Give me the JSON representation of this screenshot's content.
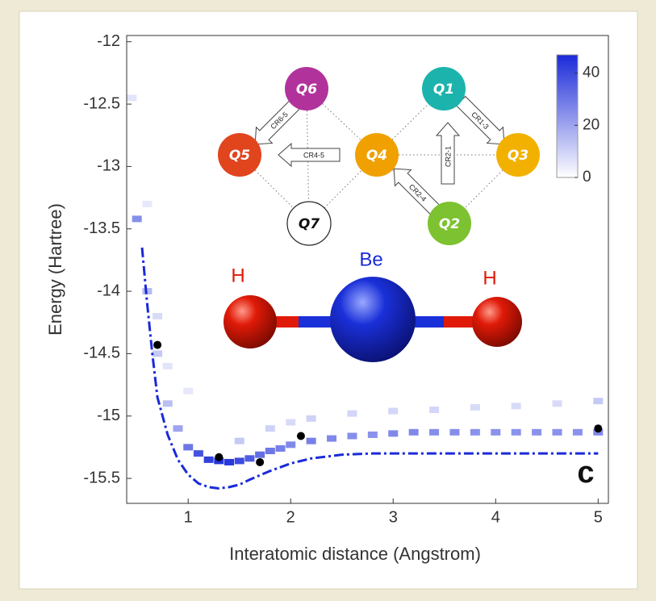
{
  "chart_data": {
    "type": "scatter",
    "xlabel": "Interatomic distance (Angstrom)",
    "ylabel": "Energy (Hartree)",
    "panel_label": "c",
    "xlim": [
      0.4,
      5.1
    ],
    "ylim": [
      -15.7,
      -11.95
    ],
    "xticks": [
      1,
      2,
      3,
      4,
      5
    ],
    "yticks": [
      -12,
      -12.5,
      -13,
      -13.5,
      -14,
      -14.5,
      -15,
      -15.5
    ],
    "series": [
      {
        "type": "line",
        "color": "#1a2ad8",
        "x": [
          0.55,
          0.6,
          0.65,
          0.7,
          0.8,
          0.9,
          1.0,
          1.1,
          1.2,
          1.3,
          1.4,
          1.5,
          1.6,
          1.8,
          2.0,
          2.2,
          2.5,
          2.8,
          3.0,
          3.5,
          4.0,
          4.5,
          5.0
        ],
        "values": [
          -13.65,
          -14.1,
          -14.5,
          -14.85,
          -15.15,
          -15.35,
          -15.47,
          -15.54,
          -15.57,
          -15.58,
          -15.57,
          -15.55,
          -15.51,
          -15.44,
          -15.38,
          -15.34,
          -15.31,
          -15.3,
          -15.3,
          -15.3,
          -15.3,
          -15.3,
          -15.3
        ]
      },
      {
        "type": "scatter",
        "color": "#000000",
        "x": [
          0.7,
          1.3,
          1.7,
          2.1,
          5.0
        ],
        "values": [
          -14.43,
          -15.33,
          -15.37,
          -15.16,
          -15.1
        ]
      }
    ],
    "heatmap": {
      "x": [
        0.5,
        0.6,
        0.7,
        0.8,
        0.9,
        1.0,
        1.1,
        1.2,
        1.3,
        1.4,
        1.5,
        1.6,
        1.7,
        1.8,
        1.9,
        2.0,
        2.2,
        2.4,
        2.6,
        2.8,
        3.0,
        3.2,
        3.4,
        3.6,
        3.8,
        4.0,
        4.2,
        4.4,
        4.6,
        4.8,
        5.0,
        1.8,
        2.2,
        2.6,
        3.0,
        3.4,
        3.8,
        4.2,
        4.6,
        5.0,
        0.45,
        0.7,
        0.8,
        1.0,
        0.6,
        1.5,
        2.0
      ],
      "y": [
        -13.42,
        -14.0,
        -14.5,
        -14.9,
        -15.1,
        -15.25,
        -15.3,
        -15.35,
        -15.36,
        -15.37,
        -15.36,
        -15.34,
        -15.31,
        -15.28,
        -15.26,
        -15.23,
        -15.2,
        -15.18,
        -15.16,
        -15.15,
        -15.14,
        -15.13,
        -15.13,
        -15.13,
        -15.13,
        -15.13,
        -15.13,
        -15.13,
        -15.13,
        -15.13,
        -15.13,
        -15.1,
        -15.02,
        -14.98,
        -14.96,
        -14.95,
        -14.93,
        -14.92,
        -14.9,
        -14.88,
        -12.45,
        -14.2,
        -14.6,
        -14.8,
        -13.3,
        -15.2,
        -15.05
      ],
      "values": [
        25,
        15,
        12,
        14,
        20,
        30,
        38,
        42,
        45,
        44,
        40,
        36,
        32,
        30,
        28,
        26,
        28,
        26,
        25,
        24,
        26,
        26,
        25,
        25,
        24,
        24,
        24,
        24,
        24,
        24,
        26,
        10,
        10,
        9,
        9,
        9,
        8,
        8,
        8,
        12,
        6,
        8,
        6,
        5,
        5,
        12,
        8
      ],
      "color": "#1a2ad8",
      "colorbar_lim": [
        0,
        47
      ],
      "colorbar_ticks": [
        0,
        20,
        40
      ]
    }
  },
  "inset": {
    "nodes": [
      "Q1",
      "Q2",
      "Q3",
      "Q4",
      "Q5",
      "Q6",
      "Q7"
    ],
    "arrows": [
      "CR6-5",
      "CR4-5",
      "CR1-3",
      "CR2-1",
      "CR2-4"
    ]
  },
  "molecule": {
    "atoms": [
      "H",
      "Be",
      "H"
    ]
  }
}
